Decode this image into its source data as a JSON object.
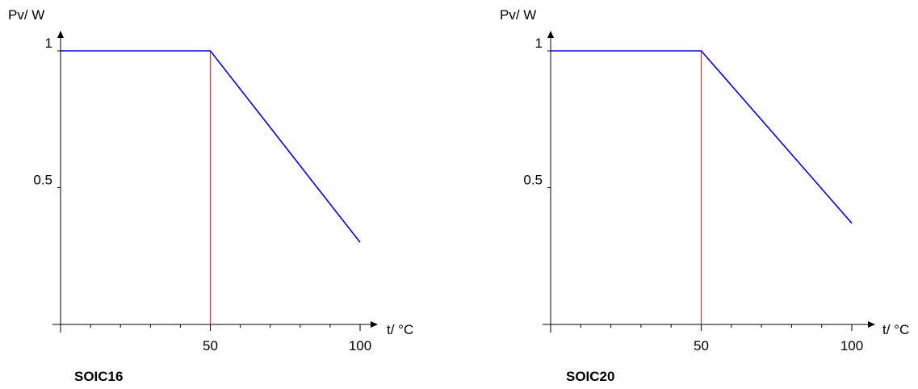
{
  "chart_data": [
    {
      "type": "line",
      "caption": "SOIC16",
      "ylabel": "Pv/ W",
      "xlabel": "t/ °C",
      "xlim": [
        0,
        100
      ],
      "ylim": [
        0,
        1
      ],
      "x_ticks": [
        50,
        100
      ],
      "y_ticks": [
        0.5,
        1
      ],
      "x_tick_labels": [
        "50",
        "100"
      ],
      "y_tick_labels": [
        "0.5",
        "1"
      ],
      "series": [
        {
          "x": [
            0,
            50,
            100
          ],
          "y": [
            1,
            1,
            0.3
          ],
          "color": "#0000ee"
        }
      ],
      "marker_line": {
        "x": 50,
        "color": "#e03030"
      }
    },
    {
      "type": "line",
      "caption": "SOIC20",
      "ylabel": "Pv/ W",
      "xlabel": "t/ °C",
      "xlim": [
        0,
        100
      ],
      "ylim": [
        0,
        1
      ],
      "x_ticks": [
        50,
        100
      ],
      "y_ticks": [
        0.5,
        1
      ],
      "x_tick_labels": [
        "50",
        "100"
      ],
      "y_tick_labels": [
        "0.5",
        "1"
      ],
      "series": [
        {
          "x": [
            0,
            50,
            100
          ],
          "y": [
            1,
            1,
            0.37
          ],
          "color": "#0000ee"
        }
      ],
      "marker_line": {
        "x": 50,
        "color": "#e03030"
      }
    }
  ]
}
